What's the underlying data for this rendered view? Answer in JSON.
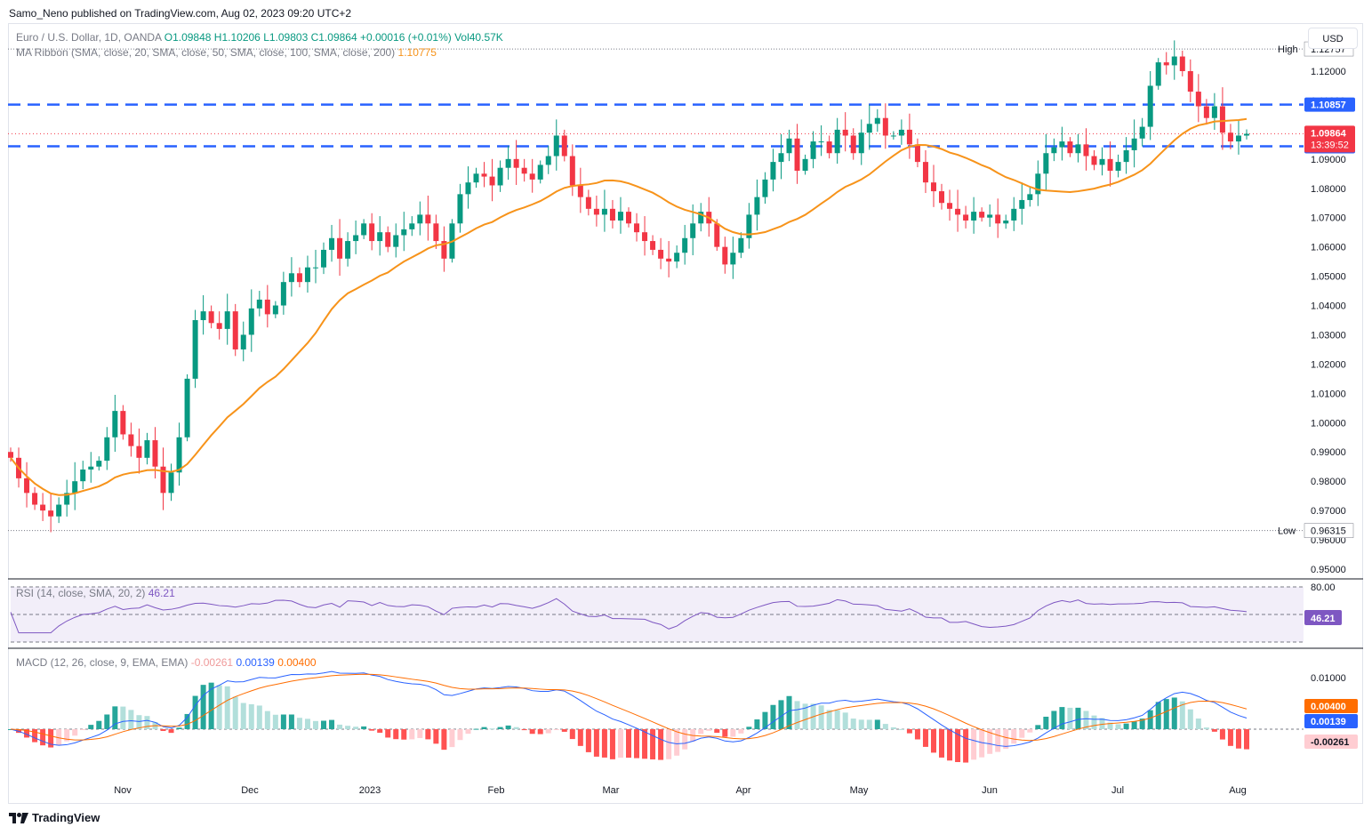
{
  "publisher": "Samo_Neno published on TradingView.com, Aug 02, 2023 09:20 UTC+2",
  "footer_brand": "TradingView",
  "currency_button": "USD",
  "legend": {
    "symbol": "Euro / U.S. Dollar, 1D, OANDA",
    "o": "O1.09848",
    "h": "H1.10206",
    "l": "L1.09803",
    "c": "C1.09864",
    "chg": "+0.00016 (+0.01%)",
    "vol": "Vol40.57K",
    "ma": "MA Ribbon (SMA, close, 20, SMA, close, 50, SMA, close, 100, SMA, close, 200)",
    "ma_value": "1.10775",
    "rsi": "RSI (14, close, SMA, 20, 2)",
    "rsi_value": "46.21",
    "macd": "MACD (12, 26, close, 9, EMA, EMA)",
    "macd_hist": "-0.00261",
    "macd_line": "0.00139",
    "macd_signal": "0.00400"
  },
  "colors": {
    "up": "#089981",
    "down": "#f23645",
    "ma": "#f7931a",
    "level": "#2962ff",
    "rsi": "#7e57c2",
    "macd": "#2962ff",
    "signal": "#ff6d00"
  },
  "chart_data": {
    "type": "candlestick",
    "price_axis": {
      "min": 0.945,
      "max": 1.13,
      "ticks": [
        "1.12000",
        "1.11000",
        "1.10000",
        "1.09000",
        "1.08000",
        "1.07000",
        "1.06000",
        "1.05000",
        "1.04000",
        "1.03000",
        "1.02000",
        "1.01000",
        "1.00000",
        "0.99000",
        "0.98000",
        "0.97000",
        "0.96000",
        "0.95000"
      ]
    },
    "time_axis": [
      "Nov",
      "Dec",
      "2023",
      "Feb",
      "Mar",
      "Apr",
      "May",
      "Jun",
      "Jul",
      "Aug"
    ],
    "high": {
      "label": "High",
      "value": "1.12757"
    },
    "low": {
      "label": "Low",
      "value": "0.96315"
    },
    "levels": [
      {
        "value": "1.10857"
      },
      {
        "value": "1.09436"
      }
    ],
    "last_price": {
      "value": "1.09864",
      "countdown": "13:39:52"
    },
    "closes": [
      0.988,
      0.981,
      0.976,
      0.972,
      0.97,
      0.968,
      0.972,
      0.976,
      0.98,
      0.984,
      0.985,
      0.987,
      0.995,
      1.004,
      0.996,
      0.992,
      0.988,
      0.994,
      0.985,
      0.976,
      0.983,
      0.995,
      1.015,
      1.035,
      1.038,
      1.034,
      1.032,
      1.038,
      1.025,
      1.03,
      1.039,
      1.042,
      1.037,
      1.04,
      1.048,
      1.051,
      1.048,
      1.053,
      1.053,
      1.059,
      1.063,
      1.056,
      1.062,
      1.064,
      1.068,
      1.062,
      1.065,
      1.06,
      1.064,
      1.066,
      1.068,
      1.071,
      1.068,
      1.062,
      1.056,
      1.068,
      1.078,
      1.082,
      1.085,
      1.084,
      1.081,
      1.087,
      1.09,
      1.087,
      1.085,
      1.083,
      1.088,
      1.091,
      1.098,
      1.091,
      1.081,
      1.077,
      1.073,
      1.071,
      1.073,
      1.069,
      1.072,
      1.068,
      1.065,
      1.062,
      1.059,
      1.056,
      1.055,
      1.058,
      1.063,
      1.068,
      1.072,
      1.068,
      1.06,
      1.054,
      1.058,
      1.063,
      1.071,
      1.077,
      1.083,
      1.089,
      1.092,
      1.097,
      1.086,
      1.09,
      1.096,
      1.096,
      1.092,
      1.1,
      1.098,
      1.092,
      1.099,
      1.102,
      1.104,
      1.098,
      1.098,
      1.1,
      1.095,
      1.089,
      1.082,
      1.079,
      1.075,
      1.073,
      1.071,
      1.069,
      1.072,
      1.07,
      1.071,
      1.068,
      1.069,
      1.073,
      1.076,
      1.078,
      1.085,
      1.092,
      1.094,
      1.096,
      1.092,
      1.095,
      1.091,
      1.088,
      1.09,
      1.086,
      1.089,
      1.093,
      1.097,
      1.101,
      1.115,
      1.123,
      1.122,
      1.125,
      1.12,
      1.113,
      1.108,
      1.104,
      1.108,
      1.099,
      1.096,
      1.098,
      1.0986
    ]
  }
}
